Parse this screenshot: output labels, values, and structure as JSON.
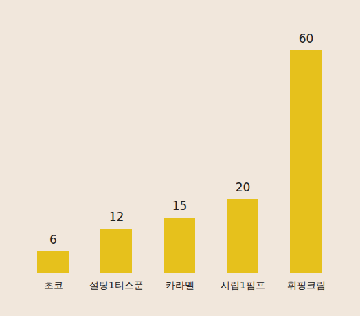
{
  "chart_data": {
    "type": "bar",
    "categories": [
      "초코",
      "설탕1티스푼",
      "카라멜",
      "시럽1펌프",
      "휘핑크림"
    ],
    "values": [
      6,
      12,
      15,
      20,
      60
    ],
    "color": "#e6c11c",
    "ylim": [
      0,
      60
    ],
    "grid": false,
    "data_labels": true,
    "tick_labels": "x"
  }
}
